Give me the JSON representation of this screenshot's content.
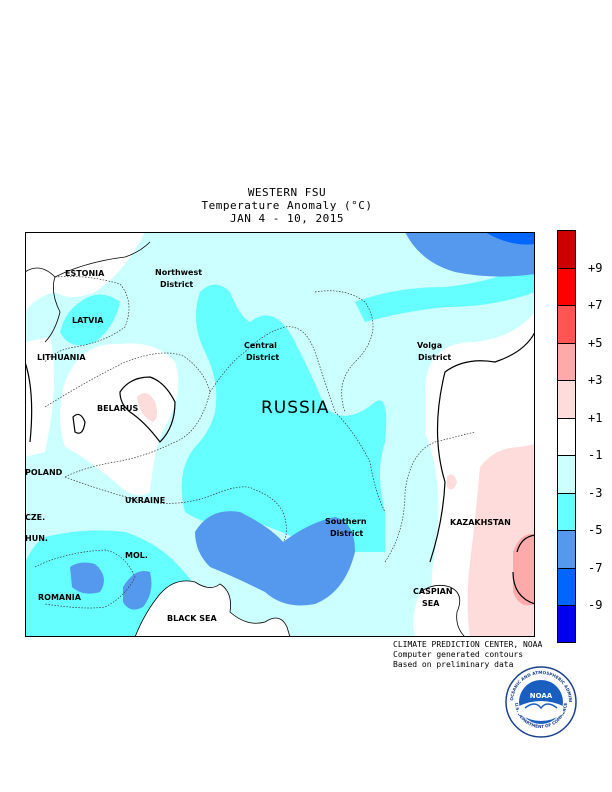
{
  "title": {
    "line1": "WESTERN FSU",
    "line2": "Temperature Anomaly (°C)",
    "line3": "JAN 4 - 10, 2015"
  },
  "map_labels": {
    "estonia": "ESTONIA",
    "latvia": "LATVIA",
    "lithuania": "LITHUANIA",
    "belarus": "BELARUS",
    "poland": "POLAND",
    "ukraine": "UKRAINE",
    "cze": "CZE.",
    "hun": "HUN.",
    "mol": "MOL.",
    "romania": "ROMANIA",
    "black_sea": "BLACK SEA",
    "russia": "RUSSIA",
    "northwest_1": "Northwest",
    "northwest_2": "District",
    "central_1": "Central",
    "central_2": "District",
    "volga_1": "Volga",
    "volga_2": "District",
    "southern_1": "Southern",
    "southern_2": "District",
    "kazakhstan": "KAZAKHSTAN",
    "caspian_1": "CASPIAN",
    "caspian_2": "SEA"
  },
  "legend": {
    "colors": [
      "#cc0000",
      "#ff0000",
      "#ff5555",
      "#ffaaaa",
      "#ffdcdc",
      "#ffffff",
      "#ccffff",
      "#66ffff",
      "#5599ee",
      "#0066ff",
      "#0000ee"
    ],
    "labels": [
      "+9",
      "+7",
      "+5",
      "+3",
      "+1",
      "-1",
      "-3",
      "-5",
      "-7",
      "-9"
    ]
  },
  "credits": {
    "line1": "CLIMATE PREDICTION CENTER, NOAA",
    "line2": "Computer generated contours",
    "line3": "Based on preliminary data"
  },
  "logo": {
    "text": "NOAA",
    "ring_top": "NATIONAL OCEANIC AND ATMOSPHERIC ADMINISTRATION",
    "ring_bottom": "U.S. DEPARTMENT OF COMMERCE"
  }
}
